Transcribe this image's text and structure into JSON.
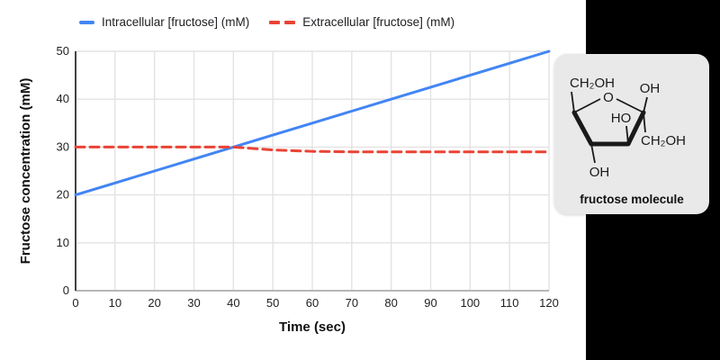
{
  "chart_data": {
    "type": "line",
    "title": "",
    "xlabel": "Time (sec)",
    "ylabel": "Fructose concentration (mM)",
    "x": [
      0,
      10,
      20,
      30,
      40,
      50,
      60,
      70,
      80,
      90,
      100,
      110,
      120
    ],
    "series": [
      {
        "name": "Intracellular [fructose] (mM)",
        "color": "#4285F4",
        "style": "solid",
        "values": [
          20,
          22.5,
          25,
          27.5,
          30,
          32.5,
          35,
          37.5,
          40,
          42.5,
          45,
          47.5,
          50
        ]
      },
      {
        "name": "Extracellular [fructose] (mM)",
        "color": "#EA4335",
        "style": "dashed",
        "values": [
          30,
          30,
          30,
          30,
          30,
          29.4,
          29.1,
          29,
          29,
          29,
          29,
          29,
          29
        ]
      }
    ],
    "xlim": [
      0,
      120
    ],
    "ylim": [
      0,
      50
    ],
    "x_ticks": [
      0,
      10,
      20,
      30,
      40,
      50,
      60,
      70,
      80,
      90,
      100,
      110,
      120
    ],
    "y_ticks": [
      0,
      10,
      20,
      30,
      40,
      50
    ],
    "grid": true,
    "legend_position": "top-left"
  },
  "molecule_card": {
    "caption": "fructose molecule",
    "labels": {
      "ch2oh_top": "CH₂OH",
      "ring_oxygen": "O",
      "oh_anomeric": "OH",
      "ho_inner": "HO",
      "ch2oh_right": "CH₂OH",
      "oh_bottom": "OH"
    }
  },
  "colors": {
    "series_blue": "#4285F4",
    "series_red": "#EA4335",
    "grid_line": "#e3e3e3",
    "x_axis_line": "#b7b7b7",
    "y_axis_line": "#424242",
    "tick_text": "#1f1f1f",
    "panel_bg": "#000000",
    "card_bg": "#e9e9e9"
  }
}
